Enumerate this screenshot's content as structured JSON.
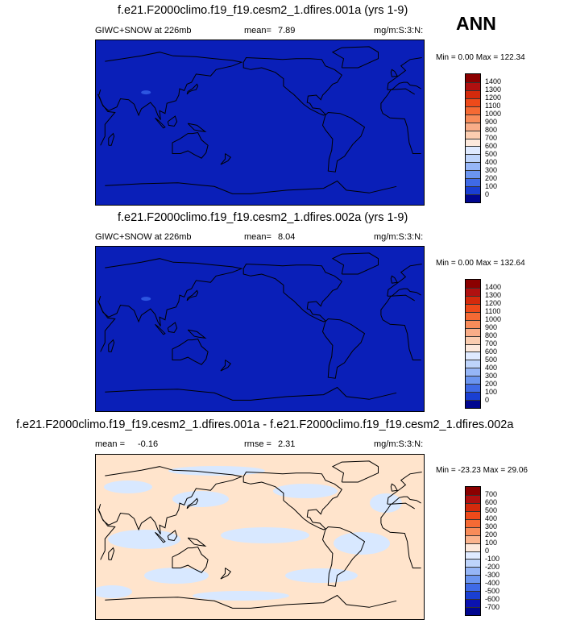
{
  "season_label": "ANN",
  "colors": {
    "deep_blue": "#0a1fb8",
    "pale_orange": "#ffe4cc",
    "pale_blue": "#d8e8ff",
    "coast": "#000000"
  },
  "panels": [
    {
      "title": "f.e21.F2000climo.f19_f19.cesm2_1.dfires.001a (yrs 1-9)",
      "left_label": "GIWC+SNOW at 226mb",
      "mean_label": "mean=",
      "mean_value": "7.89",
      "units": "mg/m:S:3:N:",
      "minmax": "Min =   0.00 Max = 122.34"
    },
    {
      "title": "f.e21.F2000climo.f19_f19.cesm2_1.dfires.002a (yrs 1-9)",
      "left_label": "GIWC+SNOW at 226mb",
      "mean_label": "mean=",
      "mean_value": "8.04",
      "units": "mg/m:S:3:N:",
      "minmax": "Min =   0.00 Max = 132.64"
    },
    {
      "title": "f.e21.F2000climo.f19_f19.cesm2_1.dfires.001a - f.e21.F2000climo.f19_f19.cesm2_1.dfires.002a",
      "mean_label": "mean =",
      "mean_value": "-0.16",
      "rmse_label": "rmse =",
      "rmse_value": "2.31",
      "units": "mg/m:S:3:N:",
      "minmax": "Min = -23.23 Max =  29.06"
    }
  ],
  "chart_data": [
    {
      "type": "heatmap",
      "title": "f.e21.F2000climo.f19_f19.cesm2_1.dfires.001a (yrs 1-9)",
      "variable": "GIWC+SNOW at 226mb",
      "mean": 7.89,
      "min": 0.0,
      "max": 122.34,
      "units": "mg/m:S:3:N:",
      "colorbar_levels": [
        "1400",
        "1300",
        "1200",
        "1100",
        "1000",
        "900",
        "800",
        "700",
        "600",
        "500",
        "400",
        "300",
        "200",
        "100",
        "0"
      ],
      "colorbar_colors": [
        "#8b0000",
        "#b01010",
        "#d42a0c",
        "#ee4a1a",
        "#f56a34",
        "#f88c5a",
        "#f9ad88",
        "#fbcdb0",
        "#fde9dc",
        "#dfeaff",
        "#bed4fb",
        "#96b6f7",
        "#6b95f0",
        "#3f6ae6",
        "#1a3fd2",
        "#00068f"
      ]
    },
    {
      "type": "heatmap",
      "title": "f.e21.F2000climo.f19_f19.cesm2_1.dfires.002a (yrs 1-9)",
      "variable": "GIWC+SNOW at 226mb",
      "mean": 8.04,
      "min": 0.0,
      "max": 132.64,
      "units": "mg/m:S:3:N:",
      "colorbar_levels": [
        "1400",
        "1300",
        "1200",
        "1100",
        "1000",
        "900",
        "800",
        "700",
        "600",
        "500",
        "400",
        "300",
        "200",
        "100",
        "0"
      ],
      "colorbar_colors": [
        "#8b0000",
        "#b01010",
        "#d42a0c",
        "#ee4a1a",
        "#f56a34",
        "#f88c5a",
        "#f9ad88",
        "#fbcdb0",
        "#fde9dc",
        "#dfeaff",
        "#bed4fb",
        "#96b6f7",
        "#6b95f0",
        "#3f6ae6",
        "#1a3fd2",
        "#00068f"
      ]
    },
    {
      "type": "heatmap",
      "title": "f.e21.F2000climo.f19_f19.cesm2_1.dfires.001a - f.e21.F2000climo.f19_f19.cesm2_1.dfires.002a",
      "mean": -0.16,
      "rmse": 2.31,
      "min": -23.23,
      "max": 29.06,
      "units": "mg/m:S:3:N:",
      "colorbar_levels": [
        "700",
        "600",
        "500",
        "400",
        "300",
        "200",
        "100",
        "0",
        "-100",
        "-200",
        "-300",
        "-400",
        "-500",
        "-600",
        "-700"
      ],
      "colorbar_colors": [
        "#8b0000",
        "#b01010",
        "#d42a0c",
        "#ee4a1a",
        "#f56a34",
        "#f88c5a",
        "#fbb48e",
        "#fde9dc",
        "#dfeaff",
        "#bed4fb",
        "#96b6f7",
        "#6b95f0",
        "#3f6ae6",
        "#1a3fd2",
        "#0b12b0",
        "#00068f"
      ]
    }
  ]
}
